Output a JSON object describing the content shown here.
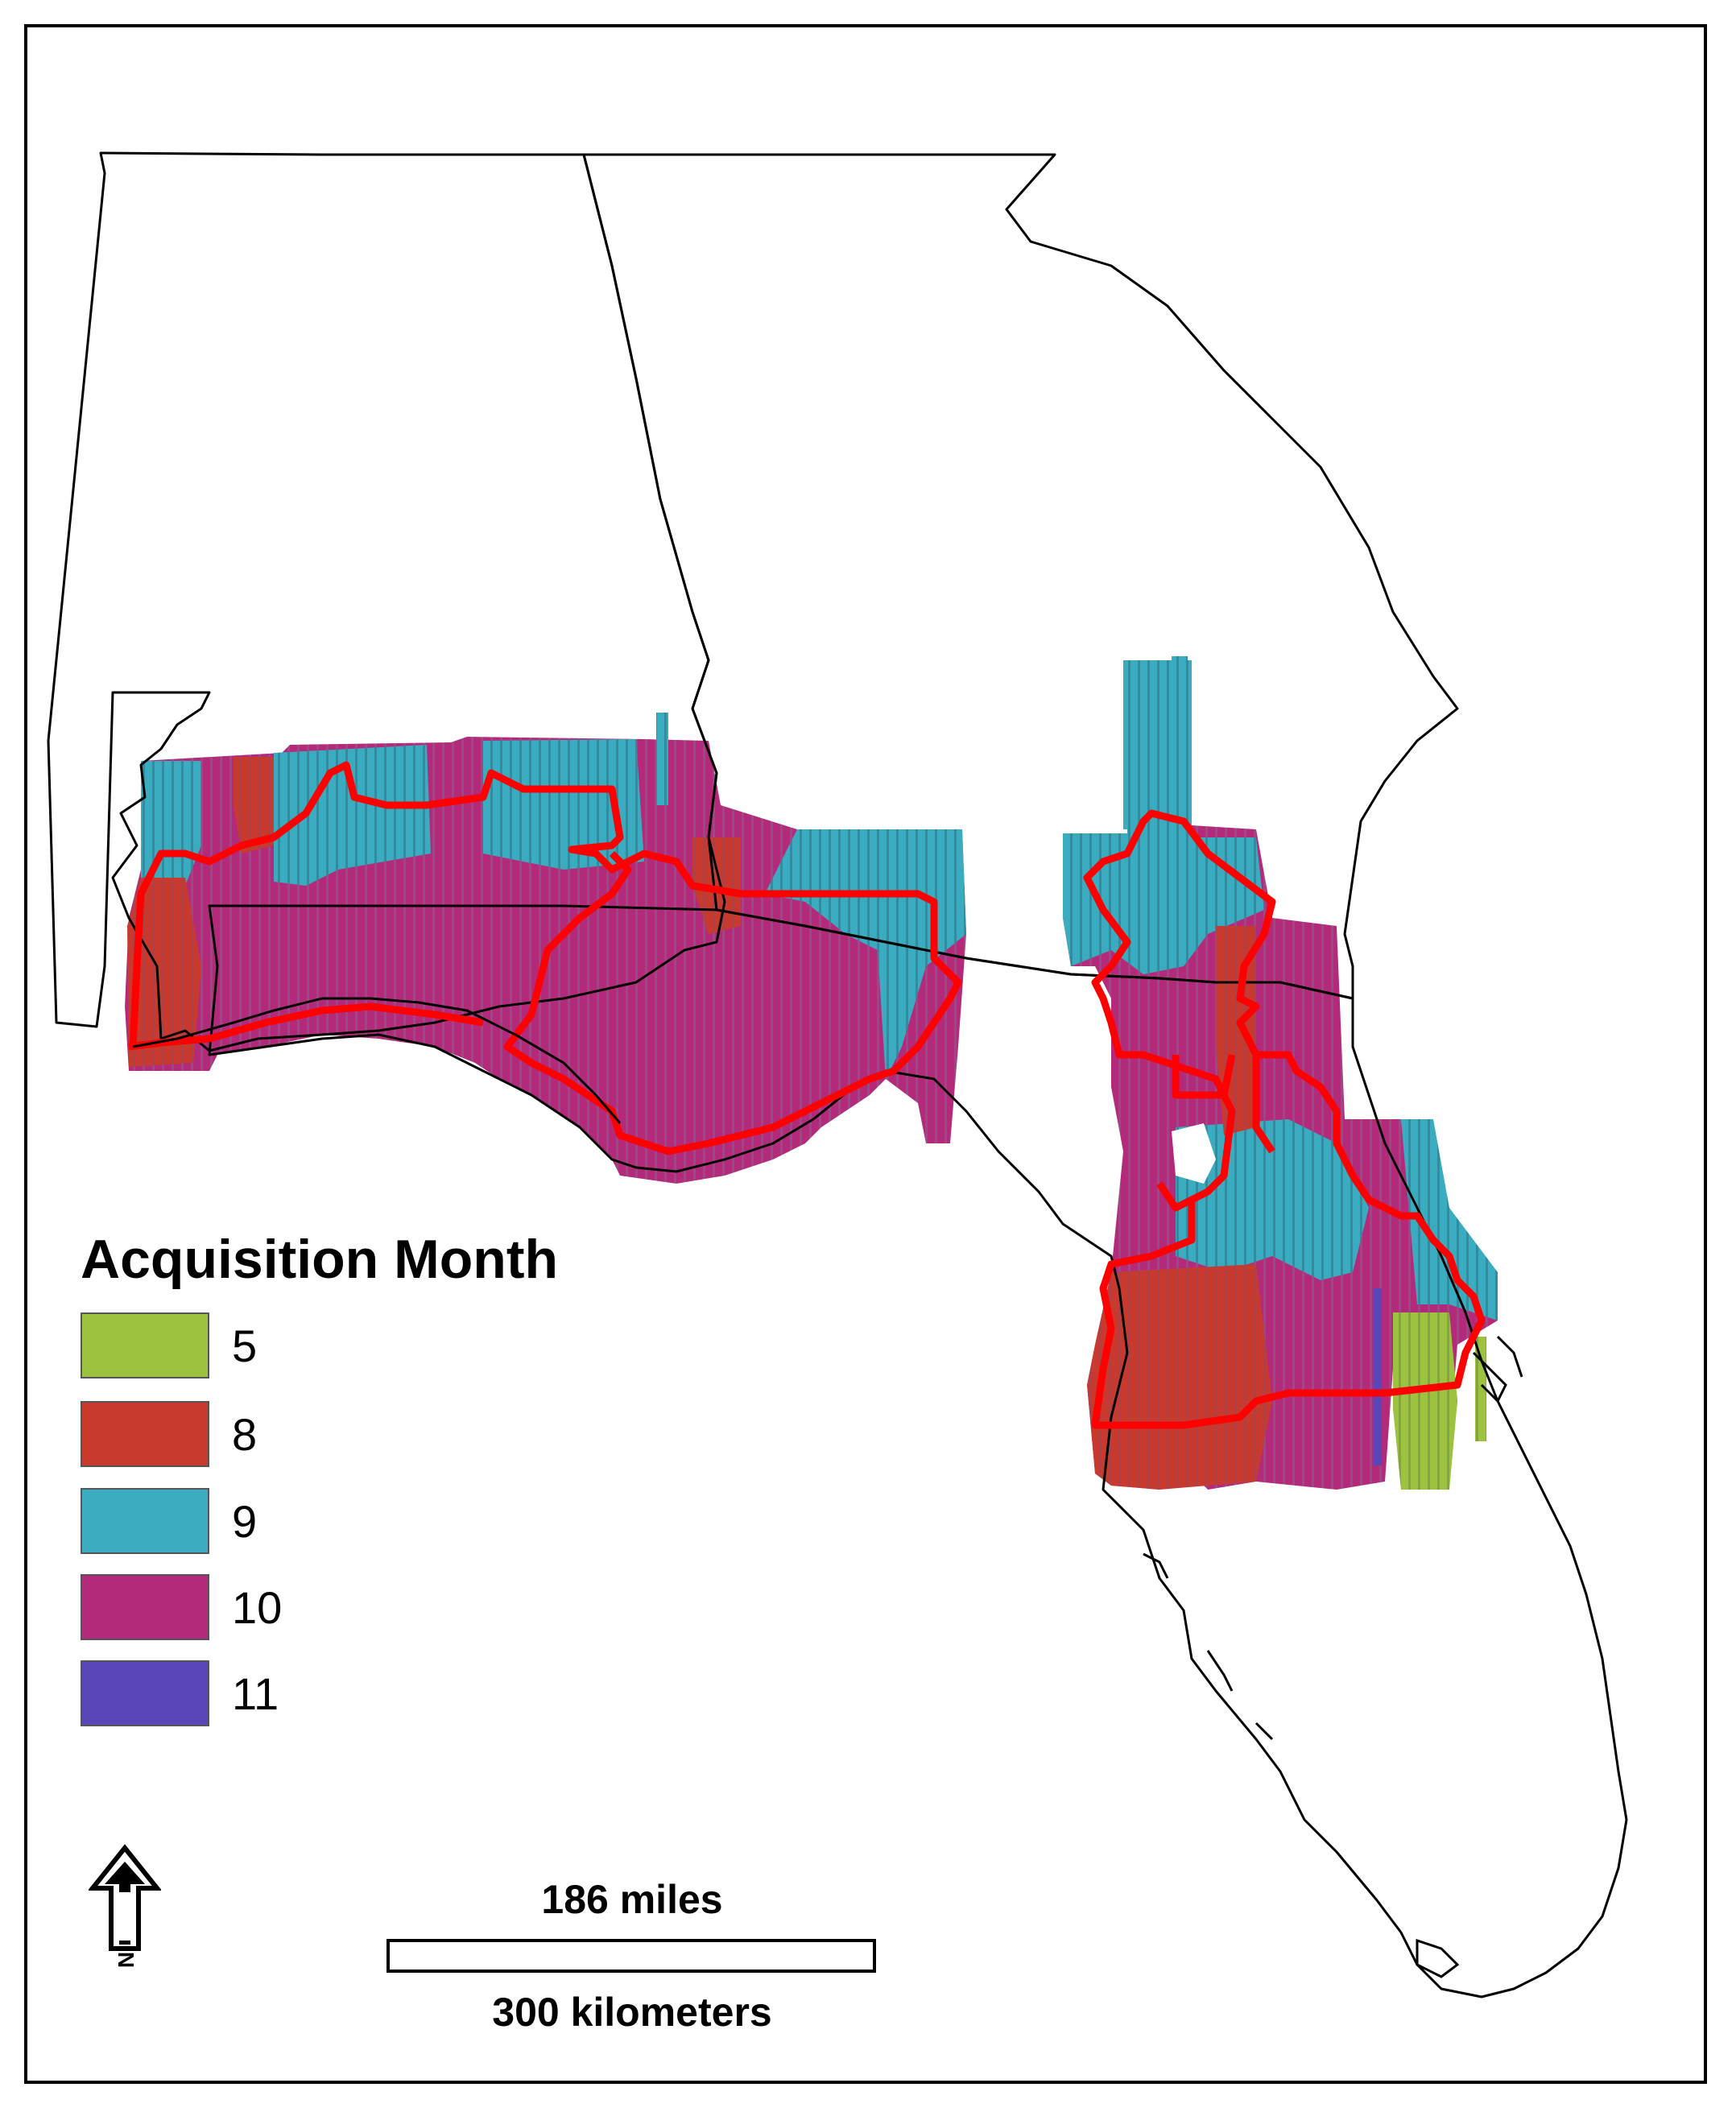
{
  "legend": {
    "title": "Acquisition Month",
    "items": [
      {
        "label": "5",
        "color": "#9dc23f"
      },
      {
        "label": "8",
        "color": "#c83a2e"
      },
      {
        "label": "9",
        "color": "#3bacc0"
      },
      {
        "label": "10",
        "color": "#b42a7a"
      },
      {
        "label": "11",
        "color": "#5a46b8"
      }
    ]
  },
  "scale_bar": {
    "top_label": "186 miles",
    "bottom_label": "300 kilometers"
  },
  "north_arrow": {
    "icon": "north-arrow-icon",
    "letter": "N"
  },
  "colors": {
    "boundary_red": "#ff0000",
    "outline_black": "#000000"
  }
}
